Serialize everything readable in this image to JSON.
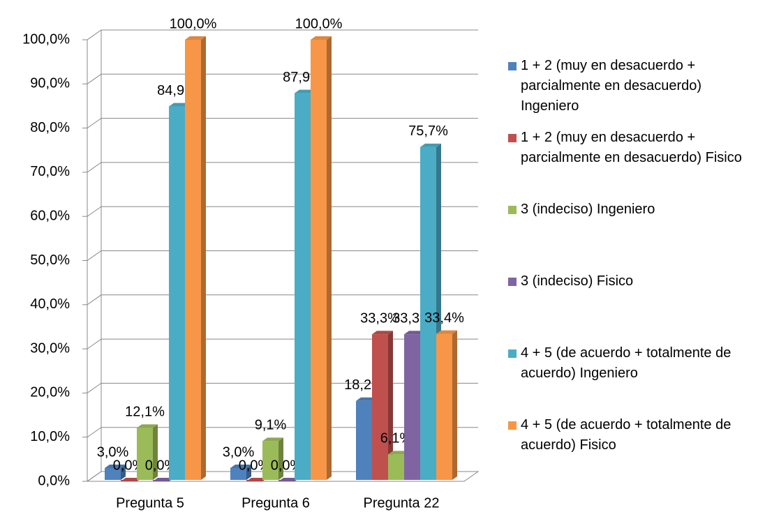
{
  "chart_data": {
    "type": "bar3d",
    "categories": [
      "Pregunta 5",
      "Pregunta 6",
      "Pregunta 22"
    ],
    "series": [
      {
        "name": "1 + 2 (muy en desacuerdo + parcialmente en desacuerdo) Ingeniero",
        "color": "#4f81bd",
        "values": [
          3.0,
          3.0,
          18.2
        ],
        "value_labels": [
          "3,0%",
          "3,0%",
          "18,2%"
        ]
      },
      {
        "name": "1 + 2 (muy en desacuerdo + parcialmente en desacuerdo) Fisico",
        "color": "#c0504d",
        "values": [
          0.0,
          0.0,
          33.3
        ],
        "value_labels": [
          "0,0%",
          "0,0%",
          "33,3%"
        ]
      },
      {
        "name": "3 (indeciso)  Ingeniero",
        "color": "#9bbb59",
        "values": [
          12.1,
          9.1,
          6.1
        ],
        "value_labels": [
          "12,1%",
          "9,1%",
          "6,1%"
        ]
      },
      {
        "name": "3 (indeciso)  Fisico",
        "color": "#8064a2",
        "values": [
          0.0,
          0.0,
          33.3
        ],
        "value_labels": [
          "0,0%",
          "0,0%",
          "33,3%"
        ]
      },
      {
        "name": "4 + 5 (de acuerdo + totalmente de acuerdo) Ingeniero",
        "color": "#4bacc6",
        "values": [
          84.9,
          87.9,
          75.7
        ],
        "value_labels": [
          "84,9%",
          "87,9%",
          "75,7%"
        ]
      },
      {
        "name": "4 + 5 (de acuerdo + totalmente de acuerdo) Fisico",
        "color": "#f79646",
        "values": [
          100.0,
          100.0,
          33.4
        ],
        "value_labels": [
          "100,0%",
          "100,0%",
          "33,4%"
        ]
      }
    ],
    "ylim": [
      0,
      100
    ],
    "yticks": [
      {
        "value": 0,
        "label": "0,0%"
      },
      {
        "value": 10,
        "label": "10,0%"
      },
      {
        "value": 20,
        "label": "20,0%"
      },
      {
        "value": 30,
        "label": "30,0%"
      },
      {
        "value": 40,
        "label": "40,0%"
      },
      {
        "value": 50,
        "label": "50,0%"
      },
      {
        "value": 60,
        "label": "60,0%"
      },
      {
        "value": 70,
        "label": "70,0%"
      },
      {
        "value": 80,
        "label": "80,0%"
      },
      {
        "value": 90,
        "label": "90,0%"
      },
      {
        "value": 100,
        "label": "100,0%"
      }
    ],
    "grid": true,
    "legend": "right"
  }
}
